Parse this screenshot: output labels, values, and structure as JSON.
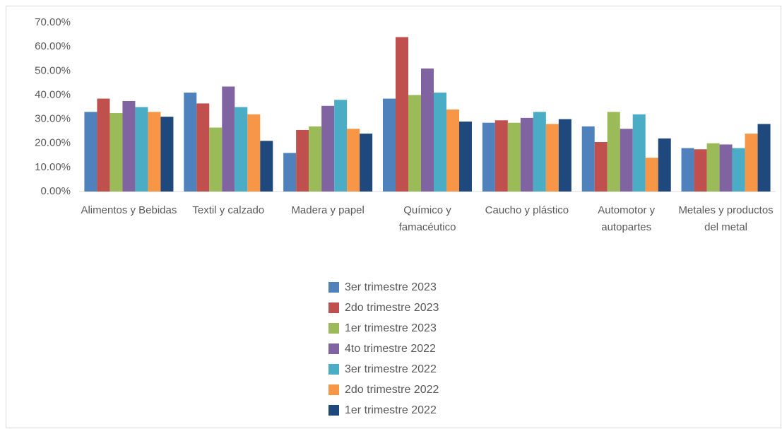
{
  "chart_data": {
    "type": "bar",
    "categories": [
      "Alimentos y Bebidas",
      "Textil y calzado",
      "Madera y papel",
      "Químico y famacéutico",
      "Caucho y plástico",
      "Automotor y autopartes",
      "Metales y productos del metal"
    ],
    "series": [
      {
        "name": "3er trimestre 2023",
        "color": "#4f81bd",
        "values": [
          33,
          41,
          16,
          38.5,
          28.5,
          27,
          18
        ]
      },
      {
        "name": "2do trimestre 2023",
        "color": "#c0504d",
        "values": [
          38.5,
          36.5,
          25.5,
          64,
          29.5,
          20.5,
          17.5
        ]
      },
      {
        "name": "1er trimestre 2023",
        "color": "#9bbb59",
        "values": [
          32.5,
          26.5,
          27,
          40,
          28.5,
          33,
          20
        ]
      },
      {
        "name": "4to trimestre 2022",
        "color": "#8064a2",
        "values": [
          37.5,
          43.5,
          35.5,
          51,
          30.5,
          26,
          19.5
        ]
      },
      {
        "name": "3er trimestre 2022",
        "color": "#4bacc6",
        "values": [
          35,
          35,
          38,
          41,
          33,
          32,
          18
        ]
      },
      {
        "name": "2do trimestre 2022",
        "color": "#f79646",
        "values": [
          33,
          32,
          26,
          34,
          28,
          14,
          24
        ]
      },
      {
        "name": "1er trimestre 2022",
        "color": "#1f497d",
        "values": [
          31,
          21,
          24,
          29,
          30,
          22,
          28
        ]
      }
    ],
    "ylim": [
      0,
      70
    ],
    "yticks": [
      {
        "value": 0,
        "label": "0.00%"
      },
      {
        "value": 10,
        "label": "10.00%"
      },
      {
        "value": 20,
        "label": "20.00%"
      },
      {
        "value": 30,
        "label": "30.00%"
      },
      {
        "value": 40,
        "label": "40.00%"
      },
      {
        "value": 50,
        "label": "50.00%"
      },
      {
        "value": 60,
        "label": "60.00%"
      },
      {
        "value": 70,
        "label": "70.00%"
      }
    ],
    "grid": false,
    "legend": "bottom"
  }
}
